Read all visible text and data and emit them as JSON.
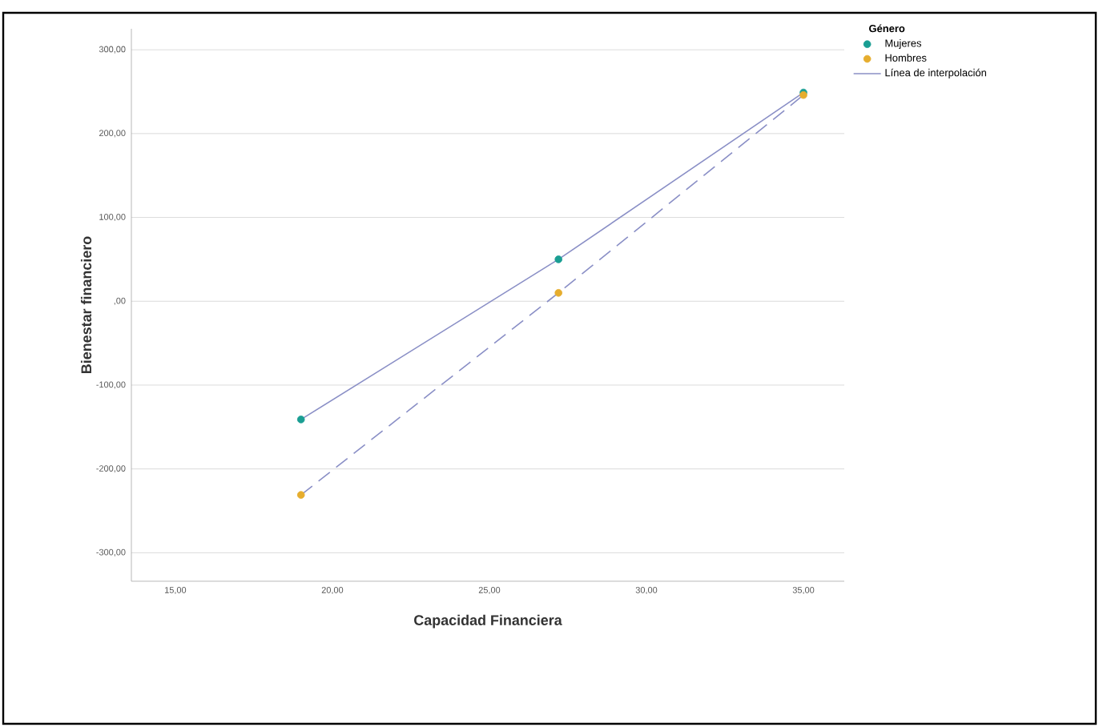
{
  "chart_data": {
    "type": "scatter",
    "xlabel": "Capacidad Financiera",
    "ylabel": "Bienestar financiero",
    "legend_title": "Género",
    "series": [
      {
        "name": "Mujeres",
        "marker": "circle",
        "color": "#1a9e93",
        "x": [
          19,
          27.2,
          35
        ],
        "values": [
          -141,
          50,
          249
        ]
      },
      {
        "name": "Hombres",
        "marker": "circle",
        "color": "#e6ad2e",
        "x": [
          19,
          27.2,
          35
        ],
        "values": [
          -231,
          10,
          246
        ]
      },
      {
        "name": "Línea de interpolación",
        "type": "line",
        "marker": "none",
        "color": "#8a8fc6",
        "line_style": "solid",
        "x": [
          19,
          27.2,
          35
        ],
        "values": [
          -141,
          50,
          249
        ]
      },
      {
        "type": "line",
        "marker": "none",
        "color": "#8a8fc6",
        "line_style": "dashed",
        "x": [
          19,
          27.2,
          35
        ],
        "values": [
          -231,
          10,
          246
        ]
      }
    ],
    "xlim": [
      13.6,
      36.3
    ],
    "ylim": [
      -334,
      325
    ],
    "xticks": [
      {
        "value": 15,
        "label": "15,00"
      },
      {
        "value": 20,
        "label": "20,00"
      },
      {
        "value": 25,
        "label": "25,00"
      },
      {
        "value": 30,
        "label": "30,00"
      },
      {
        "value": 35,
        "label": "35,00"
      }
    ],
    "yticks": [
      {
        "value": -300,
        "label": "-300,00"
      },
      {
        "value": -200,
        "label": "-200,00"
      },
      {
        "value": -100,
        "label": "-100,00"
      },
      {
        "value": 0,
        "label": ",00"
      },
      {
        "value": 100,
        "label": "100,00"
      },
      {
        "value": 200,
        "label": "200,00"
      },
      {
        "value": 300,
        "label": "300,00"
      }
    ],
    "grid": "y",
    "legend": "top right"
  }
}
